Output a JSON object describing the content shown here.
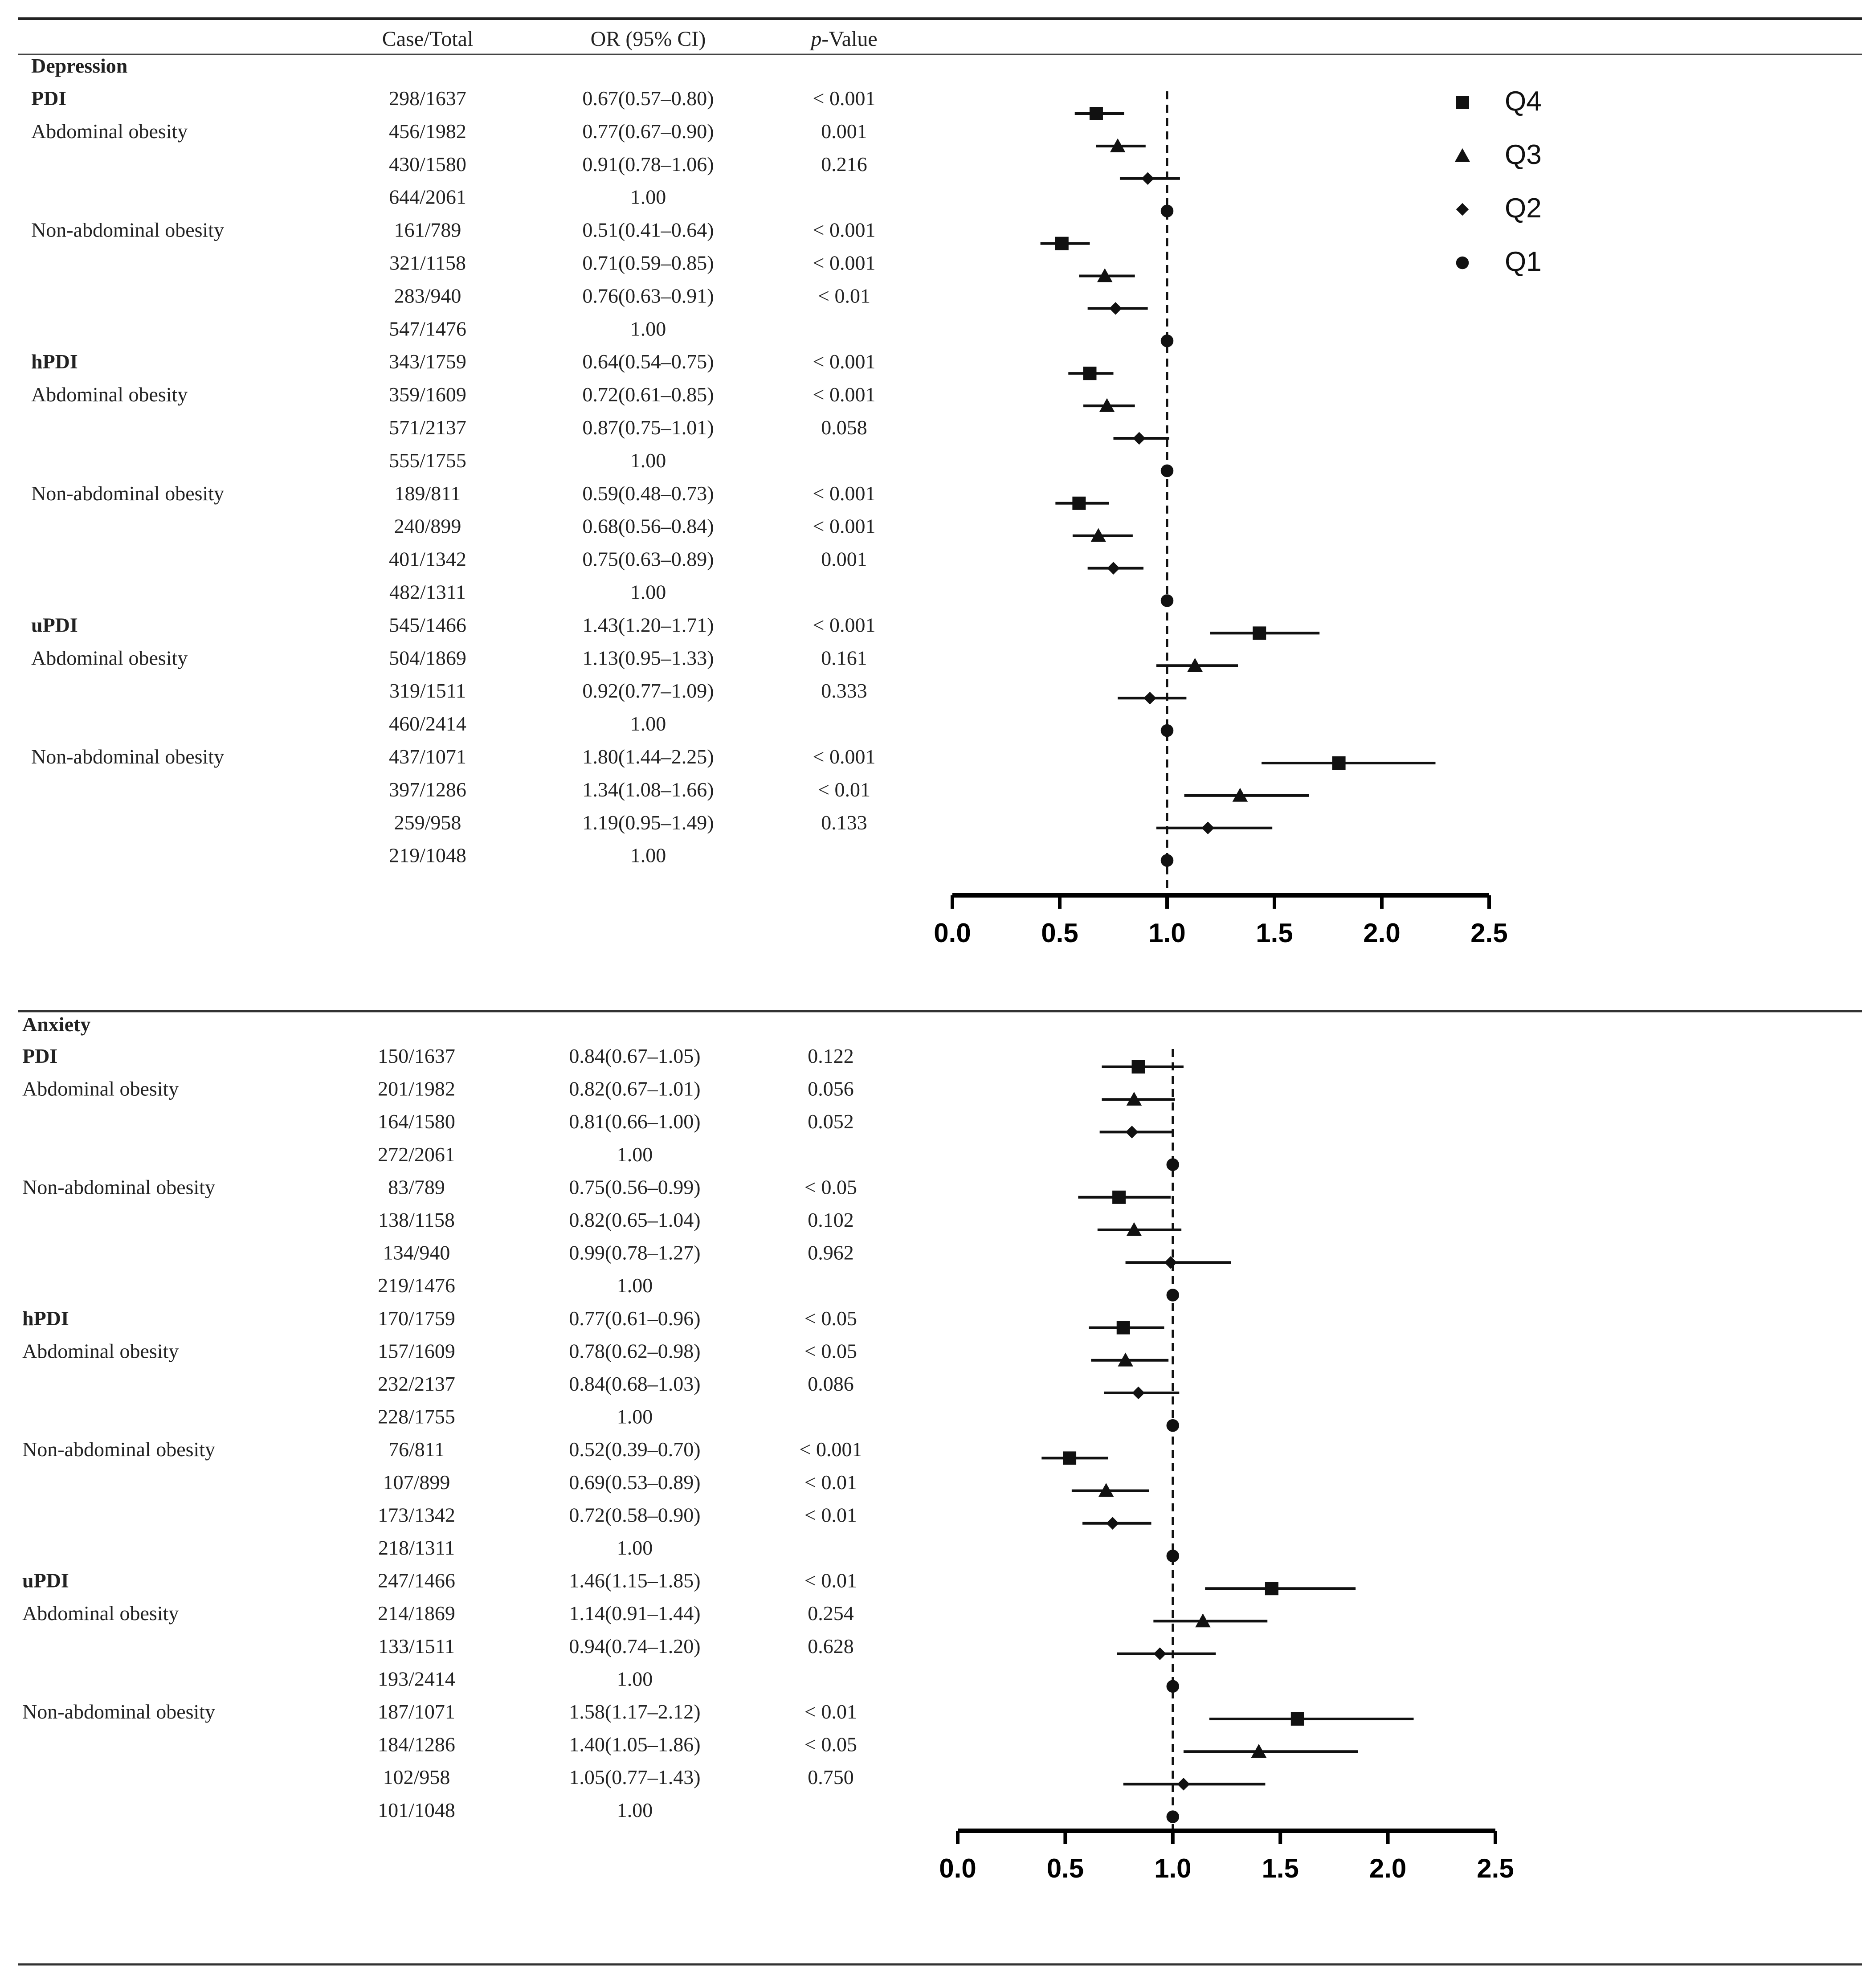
{
  "headers": {
    "case_total": "Case/Total",
    "or_ci": "OR (95% CI)",
    "p_italic": "p",
    "p_rest": "-Value"
  },
  "legend": [
    {
      "label": "Q4",
      "shape": "square"
    },
    {
      "label": "Q3",
      "shape": "triangle"
    },
    {
      "label": "Q2",
      "shape": "diamond"
    },
    {
      "label": "Q1",
      "shape": "circle"
    }
  ],
  "axis": {
    "ticks": [
      "0.0",
      "0.5",
      "1.0",
      "1.5",
      "2.0",
      "2.5"
    ],
    "xlim": [
      0,
      2.5
    ],
    "reference": 1.0
  },
  "chart_data": [
    {
      "type": "forest",
      "title": "Depression",
      "groups": [
        {
          "index": "PDI",
          "subgroups": [
            {
              "name": "Abdominal obesity",
              "rows": [
                {
                  "q": "Q4",
                  "case_total": "298/1637",
                  "or_text": "0.67(0.57–0.80)",
                  "p": "< 0.001",
                  "or": 0.67,
                  "lo": 0.57,
                  "hi": 0.8
                },
                {
                  "q": "Q3",
                  "case_total": "456/1982",
                  "or_text": "0.77(0.67–0.90)",
                  "p": "0.001",
                  "or": 0.77,
                  "lo": 0.67,
                  "hi": 0.9
                },
                {
                  "q": "Q2",
                  "case_total": "430/1580",
                  "or_text": "0.91(0.78–1.06)",
                  "p": "0.216",
                  "or": 0.91,
                  "lo": 0.78,
                  "hi": 1.06
                },
                {
                  "q": "Q1",
                  "case_total": "644/2061",
                  "or_text": "1.00",
                  "p": "",
                  "or": 1.0,
                  "lo": 1.0,
                  "hi": 1.0
                }
              ]
            },
            {
              "name": "Non-abdominal obesity",
              "rows": [
                {
                  "q": "Q4",
                  "case_total": "161/789",
                  "or_text": "0.51(0.41–0.64)",
                  "p": "< 0.001",
                  "or": 0.51,
                  "lo": 0.41,
                  "hi": 0.64
                },
                {
                  "q": "Q3",
                  "case_total": "321/1158",
                  "or_text": "0.71(0.59–0.85)",
                  "p": "< 0.001",
                  "or": 0.71,
                  "lo": 0.59,
                  "hi": 0.85
                },
                {
                  "q": "Q2",
                  "case_total": "283/940",
                  "or_text": "0.76(0.63–0.91)",
                  "p": "< 0.01",
                  "or": 0.76,
                  "lo": 0.63,
                  "hi": 0.91
                },
                {
                  "q": "Q1",
                  "case_total": "547/1476",
                  "or_text": "1.00",
                  "p": "",
                  "or": 1.0,
                  "lo": 1.0,
                  "hi": 1.0
                }
              ]
            }
          ]
        },
        {
          "index": "hPDI",
          "subgroups": [
            {
              "name": "Abdominal obesity",
              "rows": [
                {
                  "q": "Q4",
                  "case_total": "343/1759",
                  "or_text": "0.64(0.54–0.75)",
                  "p": "< 0.001",
                  "or": 0.64,
                  "lo": 0.54,
                  "hi": 0.75
                },
                {
                  "q": "Q3",
                  "case_total": "359/1609",
                  "or_text": "0.72(0.61–0.85)",
                  "p": "< 0.001",
                  "or": 0.72,
                  "lo": 0.61,
                  "hi": 0.85
                },
                {
                  "q": "Q2",
                  "case_total": "571/2137",
                  "or_text": "0.87(0.75–1.01)",
                  "p": "0.058",
                  "or": 0.87,
                  "lo": 0.75,
                  "hi": 1.01
                },
                {
                  "q": "Q1",
                  "case_total": "555/1755",
                  "or_text": "1.00",
                  "p": "",
                  "or": 1.0,
                  "lo": 1.0,
                  "hi": 1.0
                }
              ]
            },
            {
              "name": "Non-abdominal obesity",
              "rows": [
                {
                  "q": "Q4",
                  "case_total": "189/811",
                  "or_text": "0.59(0.48–0.73)",
                  "p": "< 0.001",
                  "or": 0.59,
                  "lo": 0.48,
                  "hi": 0.73
                },
                {
                  "q": "Q3",
                  "case_total": "240/899",
                  "or_text": "0.68(0.56–0.84)",
                  "p": "< 0.001",
                  "or": 0.68,
                  "lo": 0.56,
                  "hi": 0.84
                },
                {
                  "q": "Q2",
                  "case_total": "401/1342",
                  "or_text": "0.75(0.63–0.89)",
                  "p": "0.001",
                  "or": 0.75,
                  "lo": 0.63,
                  "hi": 0.89
                },
                {
                  "q": "Q1",
                  "case_total": "482/1311",
                  "or_text": "1.00",
                  "p": "",
                  "or": 1.0,
                  "lo": 1.0,
                  "hi": 1.0
                }
              ]
            }
          ]
        },
        {
          "index": "uPDI",
          "subgroups": [
            {
              "name": "Abdominal obesity",
              "rows": [
                {
                  "q": "Q4",
                  "case_total": "545/1466",
                  "or_text": "1.43(1.20–1.71)",
                  "p": "< 0.001",
                  "or": 1.43,
                  "lo": 1.2,
                  "hi": 1.71
                },
                {
                  "q": "Q3",
                  "case_total": "504/1869",
                  "or_text": "1.13(0.95–1.33)",
                  "p": "0.161",
                  "or": 1.13,
                  "lo": 0.95,
                  "hi": 1.33
                },
                {
                  "q": "Q2",
                  "case_total": "319/1511",
                  "or_text": "0.92(0.77–1.09)",
                  "p": "0.333",
                  "or": 0.92,
                  "lo": 0.77,
                  "hi": 1.09
                },
                {
                  "q": "Q1",
                  "case_total": "460/2414",
                  "or_text": "1.00",
                  "p": "",
                  "or": 1.0,
                  "lo": 1.0,
                  "hi": 1.0
                }
              ]
            },
            {
              "name": "Non-abdominal obesity",
              "rows": [
                {
                  "q": "Q4",
                  "case_total": "437/1071",
                  "or_text": "1.80(1.44–2.25)",
                  "p": "< 0.001",
                  "or": 1.8,
                  "lo": 1.44,
                  "hi": 2.25
                },
                {
                  "q": "Q3",
                  "case_total": "397/1286",
                  "or_text": "1.34(1.08–1.66)",
                  "p": "< 0.01",
                  "or": 1.34,
                  "lo": 1.08,
                  "hi": 1.66
                },
                {
                  "q": "Q2",
                  "case_total": "259/958",
                  "or_text": "1.19(0.95–1.49)",
                  "p": "0.133",
                  "or": 1.19,
                  "lo": 0.95,
                  "hi": 1.49
                },
                {
                  "q": "Q1",
                  "case_total": "219/1048",
                  "or_text": "1.00",
                  "p": "",
                  "or": 1.0,
                  "lo": 1.0,
                  "hi": 1.0
                }
              ]
            }
          ]
        }
      ]
    },
    {
      "type": "forest",
      "title": "Anxiety",
      "groups": [
        {
          "index": "PDI",
          "subgroups": [
            {
              "name": "Abdominal obesity",
              "rows": [
                {
                  "q": "Q4",
                  "case_total": "150/1637",
                  "or_text": "0.84(0.67–1.05)",
                  "p": "0.122",
                  "or": 0.84,
                  "lo": 0.67,
                  "hi": 1.05
                },
                {
                  "q": "Q3",
                  "case_total": "201/1982",
                  "or_text": "0.82(0.67–1.01)",
                  "p": "0.056",
                  "or": 0.82,
                  "lo": 0.67,
                  "hi": 1.01
                },
                {
                  "q": "Q2",
                  "case_total": "164/1580",
                  "or_text": "0.81(0.66–1.00)",
                  "p": "0.052",
                  "or": 0.81,
                  "lo": 0.66,
                  "hi": 1.0
                },
                {
                  "q": "Q1",
                  "case_total": "272/2061",
                  "or_text": "1.00",
                  "p": "",
                  "or": 1.0,
                  "lo": 1.0,
                  "hi": 1.0
                }
              ]
            },
            {
              "name": "Non-abdominal obesity",
              "rows": [
                {
                  "q": "Q4",
                  "case_total": "83/789",
                  "or_text": "0.75(0.56–0.99)",
                  "p": "< 0.05",
                  "or": 0.75,
                  "lo": 0.56,
                  "hi": 0.99
                },
                {
                  "q": "Q3",
                  "case_total": "138/1158",
                  "or_text": "0.82(0.65–1.04)",
                  "p": "0.102",
                  "or": 0.82,
                  "lo": 0.65,
                  "hi": 1.04
                },
                {
                  "q": "Q2",
                  "case_total": "134/940",
                  "or_text": "0.99(0.78–1.27)",
                  "p": "0.962",
                  "or": 0.99,
                  "lo": 0.78,
                  "hi": 1.27
                },
                {
                  "q": "Q1",
                  "case_total": "219/1476",
                  "or_text": "1.00",
                  "p": "",
                  "or": 1.0,
                  "lo": 1.0,
                  "hi": 1.0
                }
              ]
            }
          ]
        },
        {
          "index": "hPDI",
          "subgroups": [
            {
              "name": "Abdominal obesity",
              "rows": [
                {
                  "q": "Q4",
                  "case_total": "170/1759",
                  "or_text": "0.77(0.61–0.96)",
                  "p": "< 0.05",
                  "or": 0.77,
                  "lo": 0.61,
                  "hi": 0.96
                },
                {
                  "q": "Q3",
                  "case_total": "157/1609",
                  "or_text": "0.78(0.62–0.98)",
                  "p": "< 0.05",
                  "or": 0.78,
                  "lo": 0.62,
                  "hi": 0.98
                },
                {
                  "q": "Q2",
                  "case_total": "232/2137",
                  "or_text": "0.84(0.68–1.03)",
                  "p": "0.086",
                  "or": 0.84,
                  "lo": 0.68,
                  "hi": 1.03
                },
                {
                  "q": "Q1",
                  "case_total": "228/1755",
                  "or_text": "1.00",
                  "p": "",
                  "or": 1.0,
                  "lo": 1.0,
                  "hi": 1.0
                }
              ]
            },
            {
              "name": "Non-abdominal obesity",
              "rows": [
                {
                  "q": "Q4",
                  "case_total": "76/811",
                  "or_text": "0.52(0.39–0.70)",
                  "p": "< 0.001",
                  "or": 0.52,
                  "lo": 0.39,
                  "hi": 0.7
                },
                {
                  "q": "Q3",
                  "case_total": "107/899",
                  "or_text": "0.69(0.53–0.89)",
                  "p": "< 0.01",
                  "or": 0.69,
                  "lo": 0.53,
                  "hi": 0.89
                },
                {
                  "q": "Q2",
                  "case_total": "173/1342",
                  "or_text": "0.72(0.58–0.90)",
                  "p": "< 0.01",
                  "or": 0.72,
                  "lo": 0.58,
                  "hi": 0.9
                },
                {
                  "q": "Q1",
                  "case_total": "218/1311",
                  "or_text": "1.00",
                  "p": "",
                  "or": 1.0,
                  "lo": 1.0,
                  "hi": 1.0
                }
              ]
            }
          ]
        },
        {
          "index": "uPDI",
          "subgroups": [
            {
              "name": "Abdominal obesity",
              "rows": [
                {
                  "q": "Q4",
                  "case_total": "247/1466",
                  "or_text": "1.46(1.15–1.85)",
                  "p": "< 0.01",
                  "or": 1.46,
                  "lo": 1.15,
                  "hi": 1.85
                },
                {
                  "q": "Q3",
                  "case_total": "214/1869",
                  "or_text": "1.14(0.91–1.44)",
                  "p": "0.254",
                  "or": 1.14,
                  "lo": 0.91,
                  "hi": 1.44
                },
                {
                  "q": "Q2",
                  "case_total": "133/1511",
                  "or_text": "0.94(0.74–1.20)",
                  "p": "0.628",
                  "or": 0.94,
                  "lo": 0.74,
                  "hi": 1.2
                },
                {
                  "q": "Q1",
                  "case_total": "193/2414",
                  "or_text": "1.00",
                  "p": "",
                  "or": 1.0,
                  "lo": 1.0,
                  "hi": 1.0
                }
              ]
            },
            {
              "name": "Non-abdominal obesity",
              "rows": [
                {
                  "q": "Q4",
                  "case_total": "187/1071",
                  "or_text": "1.58(1.17–2.12)",
                  "p": "< 0.01",
                  "or": 1.58,
                  "lo": 1.17,
                  "hi": 2.12
                },
                {
                  "q": "Q3",
                  "case_total": "184/1286",
                  "or_text": "1.40(1.05–1.86)",
                  "p": "< 0.05",
                  "or": 1.4,
                  "lo": 1.05,
                  "hi": 1.86
                },
                {
                  "q": "Q2",
                  "case_total": "102/958",
                  "or_text": "1.05(0.77–1.43)",
                  "p": "0.750",
                  "or": 1.05,
                  "lo": 0.77,
                  "hi": 1.43
                },
                {
                  "q": "Q1",
                  "case_total": "101/1048",
                  "or_text": "1.00",
                  "p": "",
                  "or": 1.0,
                  "lo": 1.0,
                  "hi": 1.0
                }
              ]
            }
          ]
        }
      ]
    }
  ]
}
